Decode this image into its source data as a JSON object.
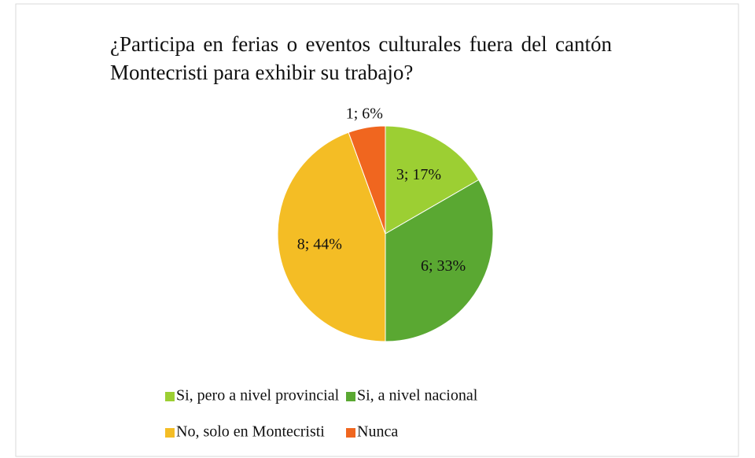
{
  "chart_data": {
    "type": "pie",
    "title": "¿Participa en ferias o eventos culturales fuera del cantón Montecristi para exhibir su trabajo?",
    "categories": [
      "Si, pero a nivel provincial",
      "Si, a nivel nacional",
      "No, solo en Montecristi",
      "Nunca"
    ],
    "values": [
      3,
      6,
      8,
      1
    ],
    "value_labels": [
      "3; 17%",
      "6; 33%",
      "8; 44%",
      "1; 6%"
    ],
    "colors": [
      "#9ccf33",
      "#5aa832",
      "#f4bd25",
      "#f0661f"
    ],
    "legend": "bottom"
  }
}
